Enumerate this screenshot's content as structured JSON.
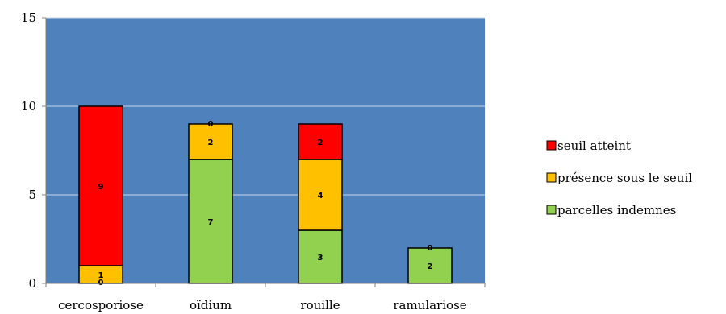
{
  "chart_data": {
    "type": "bar",
    "stacked": true,
    "categories": [
      "cercosporiose",
      "oïdium",
      "rouille",
      "ramulariose"
    ],
    "series": [
      {
        "name": "parcelles indemnes",
        "values": [
          0,
          7,
          3,
          2
        ],
        "color": "#92d050"
      },
      {
        "name": "présence sous le seuil",
        "values": [
          1,
          2,
          4,
          0
        ],
        "color": "#ffc000"
      },
      {
        "name": "seuil atteint",
        "values": [
          9,
          0,
          2,
          0
        ],
        "color": "#ff0000"
      }
    ],
    "ylim": [
      0,
      15
    ],
    "yticks": [
      0,
      5,
      10,
      15
    ],
    "grid": true,
    "plot_background": "#4f81bd",
    "legend_position": "right"
  }
}
